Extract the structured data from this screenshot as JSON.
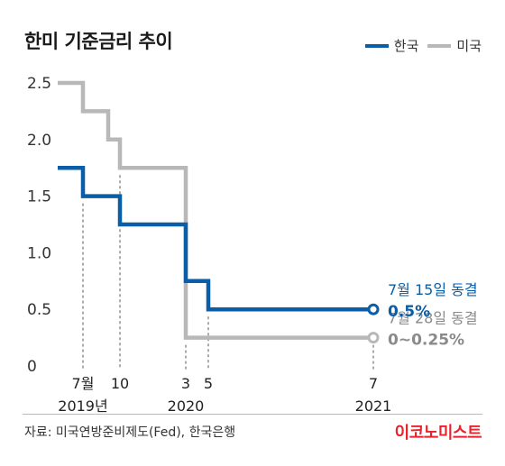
{
  "title": "한미 기준금리 추이",
  "legend": [
    {
      "name": "한국",
      "color": "#0a5ea8"
    },
    {
      "name": "미국",
      "color": "#b8b8b8"
    }
  ],
  "source": "자료: 미국연방준비제도(Fed), 한국은행",
  "brand": "이코노미스트",
  "chart_data": {
    "type": "line",
    "step": true,
    "ylim": [
      0,
      2.5
    ],
    "yticks": [
      "2.5",
      "2.0",
      "1.5",
      "1.0",
      "0.5",
      "0"
    ],
    "ytick_values": [
      2.5,
      2.0,
      1.5,
      1.0,
      0.5,
      0
    ],
    "grid": false,
    "series": [
      {
        "name": "한국",
        "color": "#0a5ea8",
        "points": [
          [
            "2019-06",
            1.75
          ],
          [
            "2019-07",
            1.5
          ],
          [
            "2019-10",
            1.25
          ],
          [
            "2020-03",
            0.75
          ],
          [
            "2020-05",
            0.5
          ],
          [
            "2021-07",
            0.5
          ]
        ],
        "end_label": {
          "line1": "7월 15일 동결",
          "line2": "0.5%"
        }
      },
      {
        "name": "미국",
        "color": "#b8b8b8",
        "points": [
          [
            "2019-06",
            2.5
          ],
          [
            "2019-07",
            2.25
          ],
          [
            "2019-09",
            2.0
          ],
          [
            "2019-10",
            1.75
          ],
          [
            "2020-03",
            0.25
          ],
          [
            "2021-07",
            0.25
          ]
        ],
        "end_label": {
          "line1": "7월 28일 동결",
          "line2": "0~0.25%"
        }
      }
    ],
    "xticks": [
      {
        "label": "7월",
        "date": "2019-07"
      },
      {
        "label": "10",
        "date": "2019-10"
      },
      {
        "label": "3",
        "date": "2020-03"
      },
      {
        "label": "5",
        "date": "2020-05"
      },
      {
        "label": "7",
        "date": "2021-07"
      }
    ],
    "year_labels": [
      {
        "label": "2019년",
        "date": "2019-07"
      },
      {
        "label": "2020",
        "date": "2020-03"
      },
      {
        "label": "2021",
        "date": "2021-07"
      }
    ]
  }
}
